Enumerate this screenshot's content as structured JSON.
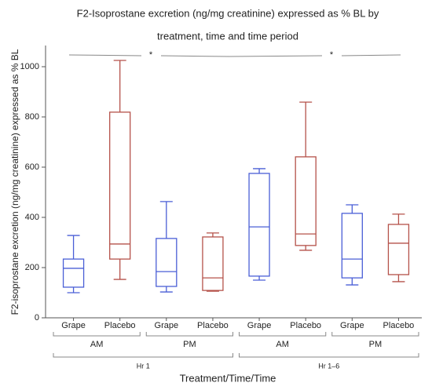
{
  "chart_data": {
    "type": "box",
    "title": [
      "F2-Isoprostane excretion (ng/mg creatinine) expressed as % BL by",
      "treatment, time and time period"
    ],
    "y_label": "F2-isoprostane excretion (ng/mg creatinine) expressed as % BL",
    "x_label": "Treatment/Time/Time",
    "categories": [
      "Grape",
      "Placebo",
      "Grape",
      "Placebo",
      "Grape",
      "Placebo",
      "Grape",
      "Placebo"
    ],
    "time": [
      "AM",
      "PM",
      "AM",
      "PM"
    ],
    "period": [
      "Hr 1",
      "Hr 1–6"
    ],
    "annotations": [
      "*",
      "*"
    ],
    "boxes": [
      {
        "min": 100,
        "q1": 122,
        "median": 197,
        "q3": 234,
        "max": 328,
        "color": "#4a5fd6"
      },
      {
        "min": 153,
        "q1": 234,
        "median": 294,
        "q3": 819,
        "max": 1025,
        "color": "#b5524a"
      },
      {
        "min": 103,
        "q1": 125,
        "median": 184,
        "q3": 316,
        "max": 463,
        "color": "#4a5fd6"
      },
      {
        "min": 106,
        "q1": 109,
        "median": 159,
        "q3": 322,
        "max": 338,
        "color": "#b5524a"
      },
      {
        "min": 150,
        "q1": 166,
        "median": 362,
        "q3": 575,
        "max": 594,
        "color": "#4a5fd6"
      },
      {
        "min": 269,
        "q1": 288,
        "median": 334,
        "q3": 641,
        "max": 859,
        "color": "#b5524a"
      },
      {
        "min": 131,
        "q1": 159,
        "median": 234,
        "q3": 416,
        "max": 450,
        "color": "#4a5fd6"
      },
      {
        "min": 144,
        "q1": 172,
        "median": 297,
        "q3": 372,
        "max": 413,
        "color": "#b5524a"
      }
    ],
    "ylim": [
      0,
      1080
    ],
    "yticks": [
      0,
      200,
      400,
      600,
      800,
      1000
    ]
  }
}
